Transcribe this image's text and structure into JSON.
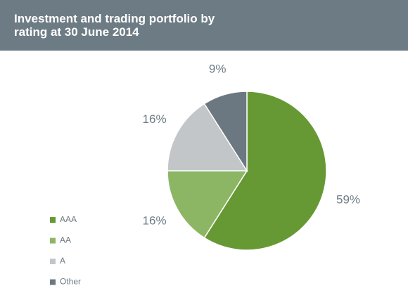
{
  "chart_data": {
    "type": "pie",
    "title": "Investment and trading portfolio by rating at 30 June 2014",
    "categories": [
      "AAA",
      "AA",
      "A",
      "Other"
    ],
    "values": [
      59,
      16,
      16,
      9
    ],
    "value_labels": [
      "59%",
      "16%",
      "16%",
      "9%"
    ],
    "colors": [
      "#669933",
      "#8db664",
      "#c3c6c8",
      "#6b7882"
    ],
    "legend": "bottom-left"
  }
}
